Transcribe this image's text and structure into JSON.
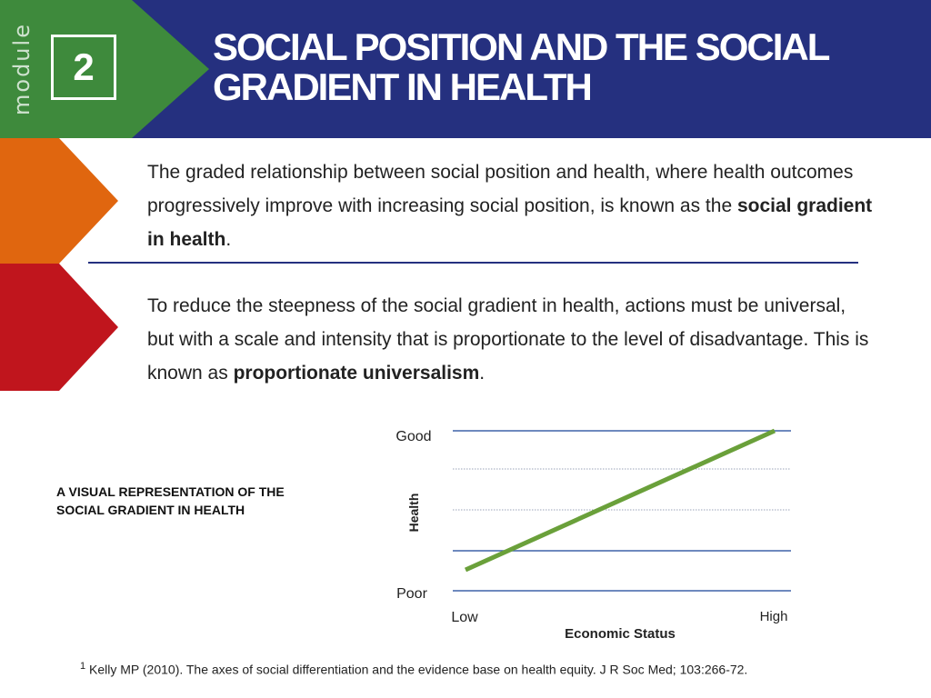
{
  "header": {
    "module_label": "module",
    "module_number": "2",
    "title": "SOCIAL POSITION AND THE SOCIAL GRADIENT IN HEALTH"
  },
  "paragraphs": {
    "p1_text": "The graded relationship between social position and health, where health outcomes progressively improve with increasing social position, is known as the ",
    "p1_bold": "social gradient in health",
    "p1_end": ".",
    "p2_text": "To reduce the steepness of the social gradient in health, actions must be universal, but with a scale and intensity that is proportionate to the level of disadvantage. This is known as ",
    "p2_bold": "proportionate universalism",
    "p2_end": "."
  },
  "chart_caption": "A VISUAL REPRESENTATION OF THE SOCIAL GRADIENT IN HEALTH",
  "chart_data": {
    "type": "line",
    "ylabel": "Health",
    "xlabel": "Economic Status",
    "y_top_label": "Good",
    "y_bottom_label": "Poor",
    "x_left_label": "Low",
    "x_right_label": "High",
    "x": [
      0,
      1
    ],
    "series": [
      {
        "values": [
          0,
          1
        ]
      }
    ],
    "ylim": [
      0,
      1
    ],
    "grid": true,
    "colors": {
      "line": "#6aa03a",
      "grid": "#3f62a8"
    }
  },
  "footnote": {
    "marker": "1",
    "text": " Kelly MP (2010). The axes of social differentiation and the evidence base on health equity. J R Soc Med; 103:266-72."
  }
}
